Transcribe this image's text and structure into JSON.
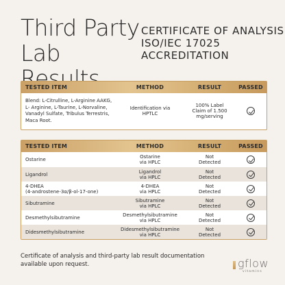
{
  "header": {
    "title_line1": "Third Party",
    "title_line2": "Lab Results",
    "cert_line1": "CERTIFICATE OF ANALYSIS",
    "cert_line2": "ISO/IEC 17025",
    "cert_line3": "ACCREDITATION"
  },
  "columns": {
    "tested_item": "TESTED ITEM",
    "method": "METHOD",
    "result": "RESULT",
    "passed": "PASSED"
  },
  "table1": {
    "rows": [
      {
        "item": "Blend: L-Citrulline, L-Arginine AAKG, L- Arginine, L-Taurine, L-Norvaline, Vanadyl Sulfate, Tribulus Terrestris, Maca Root.",
        "method": "Identification via HPTLC",
        "result": "100% Label Claim of 1.500 mg/serving",
        "passed": true
      }
    ]
  },
  "table2": {
    "rows": [
      {
        "item_line1": "Ostarine",
        "item_line2": "",
        "method_line1": "Ostarine",
        "method_line2": "via HPLC",
        "result_line1": "Not",
        "result_line2": "Detected",
        "passed": true
      },
      {
        "item_line1": "Ligandrol",
        "item_line2": "",
        "method_line1": "Ligandrol",
        "method_line2": "via HPLC",
        "result_line1": "Not",
        "result_line2": "Detected",
        "passed": true
      },
      {
        "item_line1": "4-DHEA",
        "item_line2": "(4-androstene-3α/β-ol-17-one)",
        "method_line1": "4-DHEA",
        "method_line2": "via HPLC",
        "result_line1": "Not",
        "result_line2": "Detected",
        "passed": true
      },
      {
        "item_line1": "Sibutramine",
        "item_line2": "",
        "method_line1": "Sibutramine",
        "method_line2": "via HPLC",
        "result_line1": "Not",
        "result_line2": "Detected",
        "passed": true
      },
      {
        "item_line1": "Desmethylsibutramine",
        "item_line2": "",
        "method_line1": "Desmethylsibutramine",
        "method_line2": "via HPLC",
        "result_line1": "Not",
        "result_line2": "Detected",
        "passed": true
      },
      {
        "item_line1": "Didesmethylsibutramine",
        "item_line2": "",
        "method_line1": "Didesmethylsibutramine",
        "method_line2": "via HPLC",
        "result_line1": "Not",
        "result_line2": "Detected",
        "passed": true
      }
    ]
  },
  "footer": {
    "note": "Certificate of analysis and third-party lab result documentation available upon request.",
    "brand": "gflow",
    "brand_sub": "vitamins"
  },
  "colors": {
    "background": "#f5f1ec",
    "gold": "#caa066",
    "row_alt": "#e9e3dc"
  },
  "icons": {
    "passed": "check-circle-icon"
  }
}
